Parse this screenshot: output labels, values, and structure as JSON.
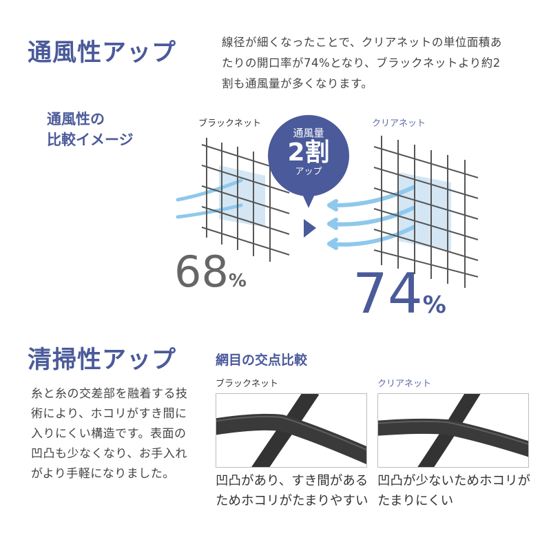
{
  "ventilation": {
    "title": "通風性アップ",
    "description": "線径が細くなったことで、クリアネットの単位面積あたりの開口率が74%となり、ブラックネットより約2割も通風量が多くなります。",
    "comparison_heading_line1": "通風性の",
    "comparison_heading_line2": "比較イメージ",
    "black_net_label": "ブラックネット",
    "clear_net_label": "クリアネット",
    "bubble": {
      "line1": "通風量",
      "line2": "2割",
      "line3": "アップ"
    },
    "black_net_ratio": {
      "value": "68",
      "unit": "%"
    },
    "clear_net_ratio": {
      "value": "74",
      "unit": "%"
    }
  },
  "cleaning": {
    "title": "清掃性アップ",
    "description": "糸と糸の交差部を融着する技術により、ホコリがすき間に入りにくい構造です。表面の凹凸も少なくなり、お手入れがより手軽になりました。",
    "intersection_heading": "網目の交点比較",
    "black_net_label": "ブラックネット",
    "clear_net_label": "クリアネット",
    "black_net_caption": "凹凸があり、すき間があるためホコリがたまりやすい",
    "clear_net_caption": "凹凸が少ないためホコリがたまりにくい"
  },
  "colors": {
    "accent": "#4a5a9a",
    "air": "#8ec8ec",
    "gray_text": "#666666"
  }
}
